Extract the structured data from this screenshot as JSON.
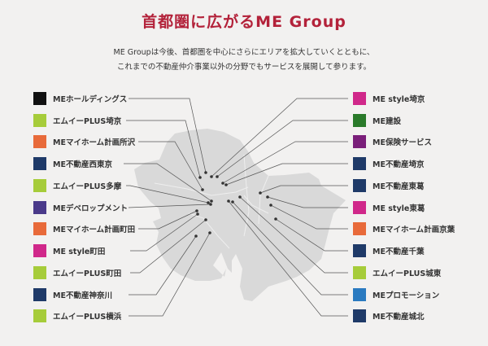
{
  "title": "首都圏に広がるME Group",
  "description": [
    "ME Groupは今後、首都圏を中心にさらにエリアを拡大していくとともに、",
    "これまでの不動産仲介事業以外の分野でもサービスを展開して参ります。"
  ],
  "left_items": [
    {
      "label": "MEホールディングス",
      "color": "#111111",
      "icon": "me-holdings-logo"
    },
    {
      "label": "エムイーPLUS埼京",
      "color": "#a6cc3a",
      "icon": "me-plus-logo"
    },
    {
      "label": "MEマイホーム計画所沢",
      "color": "#e86a3a",
      "icon": "my-home-logo"
    },
    {
      "label": "ME不動産西東京",
      "color": "#1f3a68",
      "icon": "me-fudosan-logo"
    },
    {
      "label": "エムイーPLUS多摩",
      "color": "#a6cc3a",
      "icon": "me-plus-logo"
    },
    {
      "label": "MEデベロップメント",
      "color": "#4a3a8a",
      "icon": "me-development-logo"
    },
    {
      "label": "MEマイホーム計画町田",
      "color": "#e86a3a",
      "icon": "my-home-logo"
    },
    {
      "label": "ME style町田",
      "color": "#d0288a",
      "icon": "me-style-logo"
    },
    {
      "label": "エムイーPLUS町田",
      "color": "#a6cc3a",
      "icon": "me-plus-logo"
    },
    {
      "label": "ME不動産神奈川",
      "color": "#1f3a68",
      "icon": "me-fudosan-logo"
    },
    {
      "label": "エムイーPLUS横浜",
      "color": "#a6cc3a",
      "icon": "me-plus-logo"
    }
  ],
  "right_items": [
    {
      "label": "ME style埼京",
      "color": "#d0288a",
      "icon": "me-style-logo"
    },
    {
      "label": "ME建設",
      "color": "#2a7a2a",
      "icon": "me-kensetsu-logo"
    },
    {
      "label": "ME保険サービス",
      "color": "#7a1f7a",
      "icon": "me-hoken-logo"
    },
    {
      "label": "ME不動産埼京",
      "color": "#1f3a68",
      "icon": "me-fudosan-logo"
    },
    {
      "label": "ME不動産東葛",
      "color": "#1f3a68",
      "icon": "me-fudosan-logo"
    },
    {
      "label": "ME style東葛",
      "color": "#d0288a",
      "icon": "me-style-logo"
    },
    {
      "label": "MEマイホーム計画京葉",
      "color": "#e86a3a",
      "icon": "my-home-logo"
    },
    {
      "label": "ME不動産千葉",
      "color": "#1f3a68",
      "icon": "me-fudosan-logo"
    },
    {
      "label": "エムイーPLUS城東",
      "color": "#a6cc3a",
      "icon": "me-plus-logo"
    },
    {
      "label": "MEプロモーション",
      "color": "#2a7ac0",
      "icon": "me-promotion-logo"
    },
    {
      "label": "ME不動産城北",
      "color": "#1f3a68",
      "icon": "me-fudosan-logo"
    }
  ],
  "colors": {
    "title": "#b3223a",
    "map": "#d8d8d8",
    "background": "#f2f1f0"
  }
}
